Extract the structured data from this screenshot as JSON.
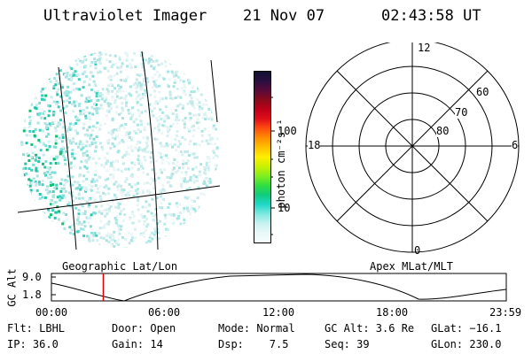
{
  "header": {
    "instrument": "Ultraviolet Imager",
    "date": "21 Nov 07",
    "time": "02:43:58 UT"
  },
  "colorbar": {
    "label": "photon cm⁻²s⁻¹",
    "ticks": [
      "100",
      "10"
    ],
    "colors": [
      "#111133",
      "#2a1040",
      "#5a0a3a",
      "#8a0a1a",
      "#c0001a",
      "#e0101a",
      "#ff5010",
      "#ff9000",
      "#ffc000",
      "#ffee00",
      "#c8f000",
      "#80ee20",
      "#30dd40",
      "#10cc80",
      "#20d8c8",
      "#80e8e0",
      "#c8f2f0",
      "#eaf8f8",
      "#f5fbfb"
    ]
  },
  "polar_plot": {
    "mlt_labels": {
      "top": "12",
      "bottom": "0",
      "left": "18",
      "right": "6"
    },
    "lat_labels": [
      "60",
      "70",
      "80"
    ]
  },
  "orbit_panel": {
    "y_axis_label": "GC Alt",
    "y_ticks": [
      "9.0",
      "1.8"
    ],
    "left_title": "Geographic Lat/Lon",
    "right_title": "Apex MLat/MLT",
    "x_ticks": [
      "00:00",
      "06:00",
      "12:00",
      "18:00",
      "23:59"
    ],
    "current_time_fraction": 0.114
  },
  "status": {
    "flt": "Flt: LBHL",
    "ip": "IP: 36.0",
    "door": "Door: Open",
    "gain": "Gain: 14",
    "mode_label": "Mode: Normal",
    "dsp": "Dsp:    7.5",
    "gc_alt": "GC Alt: 3.6 Re",
    "seq": "Seq: 39",
    "glat": "GLat: −16.1",
    "glon": "GLon: 230.0"
  }
}
